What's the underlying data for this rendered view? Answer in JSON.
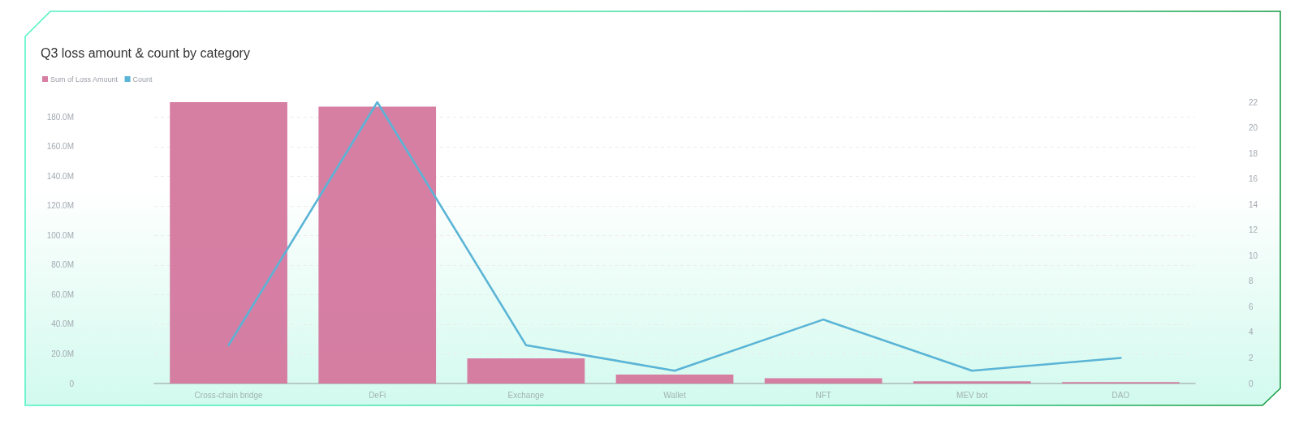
{
  "chart_data": {
    "type": "bar",
    "title": "Q3 loss amount & count by category",
    "categories": [
      "Cross-chain bridge",
      "DeFi",
      "Exchange",
      "Wallet",
      "NFT",
      "MEV bot",
      "DAO"
    ],
    "series": [
      {
        "name": "Sum of Loss Amount",
        "color": "#d4749c",
        "values": [
          190,
          187,
          17,
          6,
          3.5,
          1.5,
          1
        ]
      },
      {
        "name": "Count",
        "type": "line",
        "axis": "y2",
        "color": "#5ab4d6",
        "values": [
          3,
          22,
          3,
          1,
          5,
          1,
          2
        ]
      }
    ],
    "ylim": [
      0,
      190
    ],
    "yticks": [
      {
        "value": 0,
        "label": "0"
      },
      {
        "value": 20,
        "label": "20.0M"
      },
      {
        "value": 40,
        "label": "40.0M"
      },
      {
        "value": 60,
        "label": "60.0M"
      },
      {
        "value": 80,
        "label": "80.0M"
      },
      {
        "value": 100,
        "label": "100.0M"
      },
      {
        "value": 120,
        "label": "120.0M"
      },
      {
        "value": 140,
        "label": "140.0M"
      },
      {
        "value": 160,
        "label": "160.0M"
      },
      {
        "value": 180,
        "label": "180.0M"
      }
    ],
    "y2lim": [
      0,
      22
    ],
    "y2ticks": [
      0,
      2,
      4,
      6,
      8,
      10,
      12,
      14,
      16,
      18,
      20,
      22
    ],
    "grid": "y",
    "legend": "top left",
    "marker": "none"
  }
}
